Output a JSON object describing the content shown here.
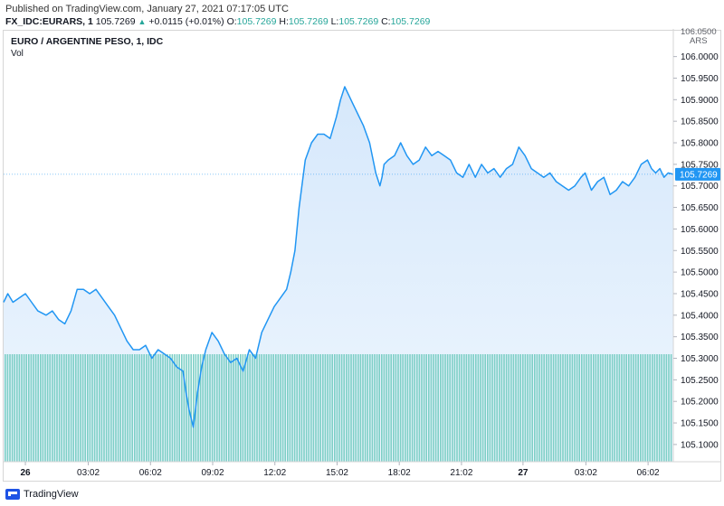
{
  "header": {
    "published": "Published on TradingView.com, January 27, 2021 07:17:05 UTC",
    "symbol": "FX_IDC:EURARS, 1",
    "last": "105.7269",
    "change": "+0.0115 (+0.01%)",
    "o_label": "O:",
    "o_value": "105.7269",
    "h_label": "H:",
    "h_value": "105.7269",
    "l_label": "L:",
    "l_value": "105.7269",
    "c_label": "C:",
    "c_value": "105.7269"
  },
  "chart_title": "EURO / ARGENTINE PESO, 1, IDC",
  "vol_label": "Vol",
  "currency": "ARS",
  "top_tick_partial": "106.0500",
  "footer_brand": "TradingView",
  "colors": {
    "line": "#2196f3",
    "area_top": "#d6e8fb",
    "area_bottom": "#eef6fe",
    "volume": "#7dcfc6",
    "last_price_bg": "#2196f3",
    "axis_text": "#131722"
  },
  "chart_data": {
    "type": "area",
    "title": "EURO / ARGENTINE PESO, 1, IDC",
    "ylabel": "ARS",
    "ylim": [
      105.06,
      106.06
    ],
    "y_ticks": [
      "106.0000",
      "105.9500",
      "105.9000",
      "105.8500",
      "105.8000",
      "105.7500",
      "105.7000",
      "105.6500",
      "105.6000",
      "105.5500",
      "105.5000",
      "105.4500",
      "105.4000",
      "105.3500",
      "105.3000",
      "105.2500",
      "105.2000",
      "105.1500",
      "105.1000"
    ],
    "x_ticks": [
      {
        "label": "26",
        "bold": true
      },
      {
        "label": "03:02",
        "bold": false
      },
      {
        "label": "06:02",
        "bold": false
      },
      {
        "label": "09:02",
        "bold": false
      },
      {
        "label": "12:02",
        "bold": false
      },
      {
        "label": "15:02",
        "bold": false
      },
      {
        "label": "18:02",
        "bold": false
      },
      {
        "label": "21:02",
        "bold": false
      },
      {
        "label": "27",
        "bold": true
      },
      {
        "label": "03:02",
        "bold": false
      },
      {
        "label": "06:02",
        "bold": false
      }
    ],
    "x_tick_hours": [
      0,
      3.033,
      6.033,
      9.033,
      12.033,
      15.033,
      18.033,
      21.033,
      24,
      27.033,
      30.033
    ],
    "x_range_hours": [
      -1.05,
      31.25
    ],
    "series": [
      {
        "x_hours": [
          -1.05,
          -0.85,
          -0.6,
          -0.3,
          0.0,
          0.3,
          0.6,
          1.0,
          1.3,
          1.6,
          1.9,
          2.2,
          2.5,
          2.8,
          3.1,
          3.4,
          3.7,
          4.0,
          4.3,
          4.6,
          4.9,
          5.2,
          5.5,
          5.8,
          6.1,
          6.4,
          6.7,
          7.0,
          7.3,
          7.6,
          7.75,
          7.9,
          8.0,
          8.1,
          8.2,
          8.3,
          8.5,
          8.7,
          9.0,
          9.3,
          9.6,
          9.9,
          10.2,
          10.5,
          10.8,
          11.1,
          11.4,
          11.7,
          12.0,
          12.3,
          12.6,
          12.8,
          13.0,
          13.2,
          13.5,
          13.8,
          14.1,
          14.4,
          14.7,
          15.0,
          15.2,
          15.4,
          15.6,
          15.8,
          16.0,
          16.3,
          16.6,
          16.9,
          17.1,
          17.2,
          17.3,
          17.5,
          17.8,
          18.1,
          18.4,
          18.7,
          19.0,
          19.3,
          19.6,
          19.9,
          20.2,
          20.5,
          20.8,
          21.1,
          21.4,
          21.7,
          22.0,
          22.3,
          22.6,
          22.9,
          23.2,
          23.5,
          23.8,
          24.1,
          24.4,
          24.7,
          25.0,
          25.3,
          25.6,
          25.9,
          26.2,
          26.5,
          26.8,
          27.0,
          27.3,
          27.6,
          27.9,
          28.2,
          28.5,
          28.8,
          29.1,
          29.4,
          29.7,
          30.0,
          30.2,
          30.4,
          30.6,
          30.8,
          31.0,
          31.25
        ],
        "values": [
          105.43,
          105.45,
          105.43,
          105.44,
          105.45,
          105.43,
          105.41,
          105.4,
          105.41,
          105.39,
          105.38,
          105.41,
          105.46,
          105.46,
          105.45,
          105.46,
          105.44,
          105.42,
          105.4,
          105.37,
          105.34,
          105.32,
          105.32,
          105.33,
          105.3,
          105.32,
          105.31,
          105.3,
          105.28,
          105.27,
          105.22,
          105.18,
          105.16,
          105.14,
          105.18,
          105.22,
          105.28,
          105.32,
          105.36,
          105.34,
          105.31,
          105.29,
          105.3,
          105.27,
          105.32,
          105.3,
          105.36,
          105.39,
          105.42,
          105.44,
          105.46,
          105.5,
          105.55,
          105.65,
          105.76,
          105.8,
          105.82,
          105.82,
          105.81,
          105.86,
          105.9,
          105.93,
          105.91,
          105.89,
          105.87,
          105.84,
          105.8,
          105.73,
          105.7,
          105.72,
          105.75,
          105.76,
          105.77,
          105.8,
          105.77,
          105.75,
          105.76,
          105.79,
          105.77,
          105.78,
          105.77,
          105.76,
          105.73,
          105.72,
          105.75,
          105.72,
          105.75,
          105.73,
          105.74,
          105.72,
          105.74,
          105.75,
          105.79,
          105.77,
          105.74,
          105.73,
          105.72,
          105.73,
          105.71,
          105.7,
          105.69,
          105.7,
          105.72,
          105.73,
          105.69,
          105.71,
          105.72,
          105.68,
          105.69,
          105.71,
          105.7,
          105.72,
          105.75,
          105.76,
          105.74,
          105.73,
          105.74,
          105.72,
          105.73,
          105.7269
        ]
      }
    ],
    "last_price": "105.7269",
    "volume_uniform": 1,
    "grid": false
  }
}
